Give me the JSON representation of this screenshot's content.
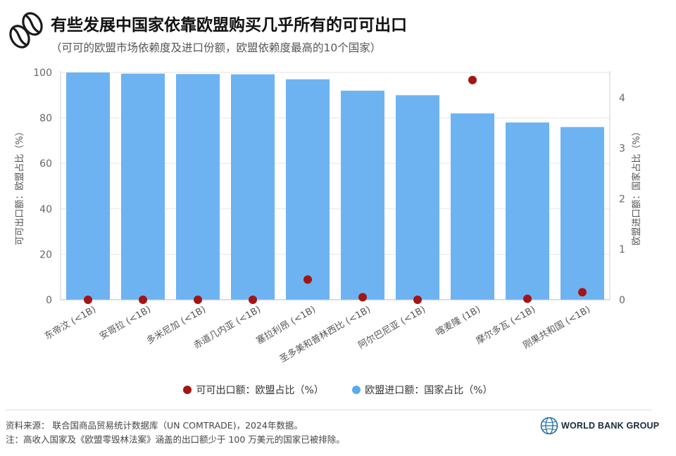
{
  "header": {
    "icon": "coffee-bean-icon",
    "title": "有些发展中国家依靠欧盟购买几乎所有的可可出口",
    "subtitle": "（可可的欧盟市场依赖度及进口份额，欧盟依赖度最高的10个国家）"
  },
  "chart_data": {
    "type": "bar",
    "categories": [
      "东帝汶 (<1B)",
      "安哥拉 (<1B)",
      "多米尼加 (<1B)",
      "赤道几内亚 (<1B)",
      "塞拉利昂 (<1B)",
      "圣多美和普林西比 (<1B)",
      "阿尔巴尼亚 (<1B)",
      "喀麦隆 (1B)",
      "摩尔多瓦 (<1B)",
      "刚果共和国 (<1B)"
    ],
    "series": [
      {
        "name": "欧盟进口额：国家占比（%）",
        "kind": "bar",
        "axis": "left",
        "color": "#6db3f2",
        "values": [
          100,
          99.5,
          99.3,
          99.2,
          97,
          92,
          90,
          82,
          78,
          76
        ]
      },
      {
        "name": "可可出口额：欧盟占比（%）",
        "kind": "point",
        "axis": "right",
        "color": "#a31515",
        "values": [
          0,
          0,
          0,
          0,
          0.4,
          0.05,
          0,
          4.35,
          0.02,
          0.15
        ]
      }
    ],
    "title": "有些发展中国家依靠欧盟购买几乎所有的可可出口",
    "ylabel": "可可出口额：欧盟占比（%）",
    "y2label": "欧盟进口额：国家占比（%）",
    "ylim": [
      0,
      100
    ],
    "yticks": [
      0,
      20,
      40,
      60,
      80,
      100
    ],
    "y2lim": [
      0,
      4.5
    ],
    "y2ticks": [
      0,
      1,
      2,
      3,
      4
    ],
    "legend_position": "bottom",
    "grid": true
  },
  "legend": [
    {
      "label": "可可出口额：欧盟占比（%）",
      "color": "#a31515"
    },
    {
      "label": "欧盟进口额：国家占比（%）",
      "color": "#5aa9ee"
    }
  ],
  "footer": {
    "source": "资料来源：  联合国商品贸易统计数据库（UN COMTRADE)，2024年数据。",
    "note": "注：高收入国家及《欧盟零毁林法案》涵盖的出口额少于 100 万美元的国家已被排除。"
  },
  "brand": {
    "name": "WORLD BANK GROUP",
    "icon": "globe-icon"
  }
}
